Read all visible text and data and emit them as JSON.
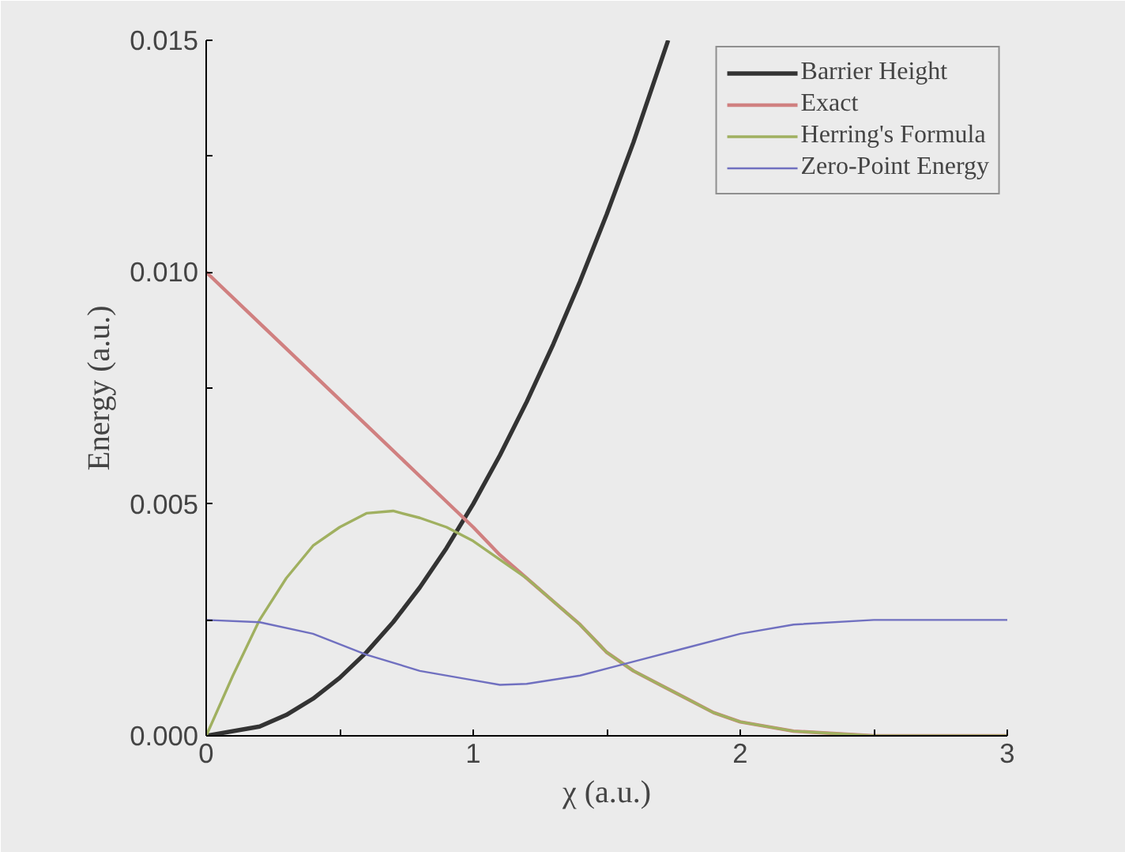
{
  "chart_data": {
    "type": "line",
    "xlabel": "χ (a.u.)",
    "ylabel": "Energy (a.u.)",
    "xlim": [
      0,
      3
    ],
    "ylim": [
      0,
      0.015
    ],
    "xticks": [
      0,
      {
        "value": 0.5,
        "label": null
      },
      1,
      {
        "value": 1.5,
        "label": null
      },
      2,
      {
        "value": 2.5,
        "label": null
      },
      3
    ],
    "yticks": [
      {
        "value": 0,
        "label": "0.000"
      },
      {
        "value": 0.0025,
        "label": null
      },
      {
        "value": 0.005,
        "label": "0.005"
      },
      {
        "value": 0.0075,
        "label": null
      },
      {
        "value": 0.01,
        "label": "0.010"
      },
      {
        "value": 0.0125,
        "label": null
      },
      {
        "value": 0.015,
        "label": "0.015"
      }
    ],
    "grid": false,
    "legend": "top right",
    "marker": "none",
    "line_style": "solid",
    "series": [
      {
        "name": "Barrier Height",
        "color": "#333333",
        "x": [
          0,
          0.2,
          0.3,
          0.4,
          0.5,
          0.6,
          0.7,
          0.8,
          0.9,
          1.0,
          1.1,
          1.2,
          1.3,
          1.4,
          1.5,
          1.6,
          1.73
        ],
        "values": [
          0,
          0.0002,
          0.00045,
          0.0008,
          0.00125,
          0.0018,
          0.00245,
          0.0032,
          0.00405,
          0.005,
          0.00605,
          0.0072,
          0.00845,
          0.0098,
          0.01125,
          0.0128,
          0.015
        ]
      },
      {
        "name": "Exact",
        "color": "#d08080",
        "x": [
          0,
          0.2,
          0.4,
          0.6,
          0.8,
          1.0,
          1.1,
          1.2,
          1.3,
          1.4,
          1.5,
          1.6,
          1.7,
          1.8,
          1.9,
          2.0,
          2.2,
          2.5,
          3.0
        ],
        "values": [
          0.01,
          0.0089,
          0.0078,
          0.0067,
          0.0056,
          0.0045,
          0.0039,
          0.0034,
          0.0029,
          0.0024,
          0.0018,
          0.0014,
          0.0011,
          0.0008,
          0.0005,
          0.0003,
          0.0001,
          0,
          0
        ]
      },
      {
        "name": "Herring's Formula",
        "color": "#a0b060",
        "x": [
          0,
          0.1,
          0.2,
          0.3,
          0.4,
          0.5,
          0.6,
          0.7,
          0.8,
          0.9,
          1.0,
          1.1,
          1.2,
          1.3,
          1.4,
          1.5,
          1.6,
          1.7,
          1.8,
          1.9,
          2.0,
          2.2,
          2.5,
          3.0
        ],
        "values": [
          0,
          0.0013,
          0.0025,
          0.0034,
          0.0041,
          0.0045,
          0.0048,
          0.00485,
          0.0047,
          0.0045,
          0.0042,
          0.0038,
          0.0034,
          0.0029,
          0.0024,
          0.0018,
          0.0014,
          0.0011,
          0.0008,
          0.0005,
          0.0003,
          0.0001,
          0,
          0
        ]
      },
      {
        "name": "Zero-Point Energy",
        "color": "#7070c0",
        "x": [
          0,
          0.2,
          0.4,
          0.6,
          0.8,
          1.0,
          1.1,
          1.2,
          1.4,
          1.6,
          1.8,
          2.0,
          2.2,
          2.5,
          3.0
        ],
        "values": [
          0.0025,
          0.00245,
          0.0022,
          0.00175,
          0.0014,
          0.0012,
          0.0011,
          0.00112,
          0.0013,
          0.0016,
          0.0019,
          0.0022,
          0.0024,
          0.0025,
          0.0025
        ]
      }
    ]
  }
}
